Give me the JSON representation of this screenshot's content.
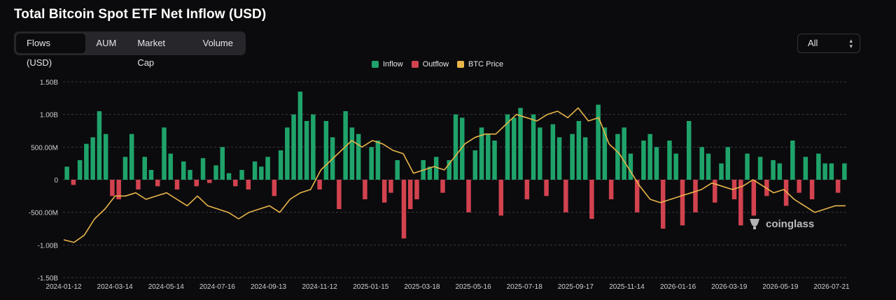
{
  "page": {
    "title": "Total Bitcoin Spot ETF Net Inflow (USD)"
  },
  "tabs": [
    {
      "label": "Flows (USD)",
      "active": true
    },
    {
      "label": "AUM",
      "active": false
    },
    {
      "label": "Market Cap",
      "active": false
    },
    {
      "label": "Volume",
      "active": false
    }
  ],
  "range_select": {
    "value": "All",
    "icon": "chevron-updown-icon"
  },
  "legend": [
    {
      "label": "Inflow",
      "color": "#1fa36b"
    },
    {
      "label": "Outflow",
      "color": "#d2424f"
    },
    {
      "label": "BTC Price",
      "color": "#e9b54a"
    }
  ],
  "watermark": {
    "text": "coinglass",
    "icon": "coinglass-logo-icon"
  },
  "chart_data": {
    "type": "bar",
    "title": "Total Bitcoin Spot ETF Net Inflow (USD)",
    "y_ticks": [
      {
        "value": 1500000000,
        "label": "1.50B"
      },
      {
        "value": 1000000000,
        "label": "1.00B"
      },
      {
        "value": 500000000,
        "label": "500.00M"
      },
      {
        "value": 0,
        "label": "0"
      },
      {
        "value": -500000000,
        "label": "-500.00M"
      },
      {
        "value": -1000000000,
        "label": "-1.00B"
      },
      {
        "value": -1500000000,
        "label": "-1.50B"
      }
    ],
    "ylim": [
      -1500000000,
      1500000000
    ],
    "x_ticks": [
      "2024-01-12",
      "2024-03-14",
      "2024-05-14",
      "2024-07-16",
      "2024-09-13",
      "2024-11-12",
      "2025-01-15",
      "2025-03-18",
      "2025-05-16",
      "2025-07-18",
      "2025-09-17",
      "2025-11-14",
      "2026-01-16",
      "2026-03-19",
      "2026-05-19",
      "2026-07-21"
    ],
    "grid": true,
    "legend_position": "top-center",
    "series": [
      {
        "name": "Inflow / Outflow",
        "kind": "bar",
        "sampling": "weekly",
        "x_start": "2024-01-12",
        "x_end": "2026-07-21",
        "values_musd": [
          200,
          -80,
          300,
          550,
          650,
          1050,
          700,
          -250,
          -300,
          350,
          700,
          -150,
          350,
          150,
          -100,
          800,
          400,
          -150,
          280,
          150,
          -100,
          330,
          -50,
          220,
          500,
          100,
          -100,
          150,
          -150,
          280,
          200,
          350,
          -250,
          450,
          800,
          1000,
          1350,
          900,
          1000,
          -150,
          900,
          650,
          -450,
          1050,
          800,
          700,
          -300,
          500,
          600,
          -350,
          -200,
          300,
          -900,
          -450,
          -300,
          300,
          200,
          350,
          -200,
          300,
          1000,
          950,
          -500,
          450,
          800,
          700,
          600,
          -550,
          1000,
          950,
          1100,
          -300,
          1000,
          800,
          -250,
          850,
          650,
          -500,
          700,
          900,
          650,
          -600,
          1150,
          800,
          -300,
          700,
          800,
          400,
          -500,
          600,
          700,
          500,
          -750,
          600,
          400,
          -700,
          900,
          -500,
          500,
          400,
          -350,
          250,
          500,
          -300,
          -700,
          400,
          -550,
          350,
          -250,
          300,
          250,
          -400,
          600,
          -200,
          350,
          -300,
          400,
          250,
          250,
          -200,
          250
        ]
      },
      {
        "name": "BTC Price",
        "kind": "line",
        "sampling": "weekly",
        "values_rel": [
          -920,
          -960,
          -850,
          -600,
          -450,
          -250,
          -250,
          -200,
          -300,
          -250,
          -200,
          -300,
          -400,
          -250,
          -400,
          -450,
          -500,
          -600,
          -500,
          -450,
          -400,
          -500,
          -300,
          -200,
          -150,
          150,
          300,
          450,
          600,
          500,
          600,
          550,
          450,
          400,
          100,
          150,
          200,
          150,
          350,
          550,
          650,
          700,
          700,
          850,
          1000,
          950,
          900,
          1000,
          1050,
          950,
          1100,
          900,
          950,
          550,
          400,
          150,
          -100,
          -300,
          -350,
          -300,
          -250,
          -200,
          -150,
          -50,
          -100,
          -150,
          -100,
          0,
          -100,
          -200,
          -150,
          -300,
          -400,
          -500,
          -450,
          -400,
          -400
        ]
      }
    ]
  }
}
